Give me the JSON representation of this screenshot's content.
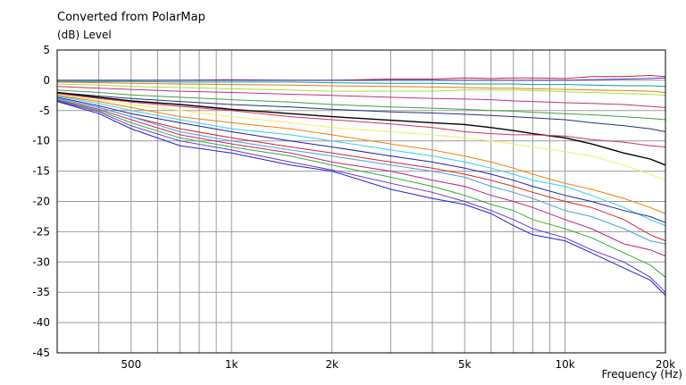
{
  "chart_data": {
    "type": "line",
    "title": "Converted from PolarMap",
    "ylabel": "(dB)  Level",
    "xlabel": "Frequency  (Hz)",
    "x_scale": "log",
    "xlim": [
      300,
      20000
    ],
    "ylim": [
      -45,
      5
    ],
    "grid": true,
    "y_ticks": [
      5,
      0,
      -5,
      -10,
      -15,
      -20,
      -25,
      -30,
      -35,
      -40,
      -45
    ],
    "x_tick_labels": [
      {
        "value": 500,
        "label": "500"
      },
      {
        "value": 1000,
        "label": "1k"
      },
      {
        "value": 2000,
        "label": "2k"
      },
      {
        "value": 5000,
        "label": "5k"
      },
      {
        "value": 10000,
        "label": "10k"
      },
      {
        "value": 20000,
        "label": "20k"
      }
    ],
    "x_gridlines": [
      400,
      500,
      600,
      700,
      800,
      900,
      1000,
      2000,
      3000,
      4000,
      5000,
      6000,
      7000,
      8000,
      9000,
      10000,
      20000
    ],
    "x": [
      300,
      400,
      500,
      700,
      1000,
      1500,
      2000,
      3000,
      4000,
      5000,
      6000,
      7000,
      8000,
      10000,
      12000,
      15000,
      18000,
      20000
    ],
    "series": [
      {
        "color": "#d02020",
        "values": [
          0,
          0,
          0,
          0,
          0.1,
          0,
          0,
          0.2,
          0.2,
          0.4,
          0.3,
          0.4,
          0.4,
          0.3,
          0.6,
          0.6,
          0.8,
          0.6
        ]
      },
      {
        "color": "#3030c0",
        "values": [
          0,
          0,
          0,
          0,
          0,
          0,
          0,
          0,
          0,
          0,
          0,
          0,
          0,
          0,
          0.1,
          0.2,
          0.3,
          0.4
        ]
      },
      {
        "color": "#00a0a0",
        "values": [
          -0.2,
          -0.2,
          -0.2,
          -0.3,
          -0.3,
          -0.3,
          -0.4,
          -0.5,
          -0.5,
          -0.6,
          -0.6,
          -0.6,
          -0.7,
          -0.7,
          -0.8,
          -0.9,
          -0.9,
          -1.0
        ]
      },
      {
        "color": "#e08000",
        "values": [
          -0.3,
          -0.4,
          -0.5,
          -0.6,
          -0.7,
          -0.8,
          -0.9,
          -1.0,
          -1.1,
          -1.2,
          -1.3,
          -1.3,
          -1.4,
          -1.5,
          -1.6,
          -1.7,
          -1.8,
          -2.0
        ]
      },
      {
        "color": "#a0e040",
        "values": [
          -0.6,
          -0.8,
          -1.0,
          -1.2,
          -1.4,
          -1.6,
          -1.8,
          -1.8,
          -1.8,
          -1.6,
          -1.6,
          -1.6,
          -1.7,
          -1.9,
          -2.0,
          -2.2,
          -2.3,
          -2.5
        ]
      },
      {
        "color": "#c03080",
        "values": [
          -1.0,
          -1.3,
          -1.5,
          -1.8,
          -2.0,
          -2.3,
          -2.5,
          -2.8,
          -3.0,
          -3.1,
          -3.2,
          -3.4,
          -3.5,
          -3.7,
          -3.8,
          -4.0,
          -4.3,
          -4.5
        ]
      },
      {
        "color": "#40a040",
        "values": [
          -1.6,
          -2.0,
          -2.4,
          -2.8,
          -3.2,
          -3.6,
          -4.0,
          -4.4,
          -4.6,
          -4.8,
          -5.0,
          -5.1,
          -5.3,
          -5.5,
          -5.7,
          -6.0,
          -6.3,
          -6.5
        ]
      },
      {
        "color": "#203080",
        "values": [
          -2.0,
          -2.6,
          -3.0,
          -3.5,
          -4.0,
          -4.4,
          -4.8,
          -5.2,
          -5.4,
          -5.6,
          -5.8,
          -6.0,
          -6.2,
          -6.5,
          -7.0,
          -7.5,
          -8.0,
          -8.5
        ]
      },
      {
        "color": "#000000",
        "values": [
          -2.0,
          -2.8,
          -3.4,
          -4.0,
          -4.8,
          -5.5,
          -6.0,
          -6.6,
          -7.0,
          -7.3,
          -7.8,
          -8.3,
          -8.8,
          -9.5,
          -10.5,
          -12.0,
          -13.0,
          -14.0
        ]
      },
      {
        "color": "#d03060",
        "values": [
          -2.2,
          -3.0,
          -3.6,
          -4.3,
          -5.0,
          -6.0,
          -6.5,
          -7.2,
          -7.8,
          -8.5,
          -8.8,
          -9.0,
          -9.0,
          -9.2,
          -9.8,
          -10.2,
          -10.8,
          -11.0
        ]
      },
      {
        "color": "#f0f060",
        "values": [
          -2.4,
          -3.3,
          -4.0,
          -5.0,
          -6.0,
          -7.0,
          -7.8,
          -8.5,
          -9.0,
          -9.5,
          -10.0,
          -10.5,
          -11.0,
          -11.8,
          -12.5,
          -14.0,
          -15.5,
          -16.5
        ]
      },
      {
        "color": "#f08000",
        "values": [
          -2.5,
          -3.5,
          -4.5,
          -6.0,
          -7.0,
          -8.0,
          -9.0,
          -10.5,
          -11.5,
          -12.5,
          -13.5,
          -14.5,
          -15.5,
          -17.0,
          -18.0,
          -19.5,
          -21.0,
          -22.0
        ]
      },
      {
        "color": "#30d0f0",
        "values": [
          -2.6,
          -3.8,
          -5.0,
          -6.5,
          -8.0,
          -9.0,
          -10.0,
          -11.5,
          -12.5,
          -13.5,
          -14.5,
          -15.5,
          -16.5,
          -17.5,
          -19.0,
          -21.0,
          -23.0,
          -24.0
        ]
      },
      {
        "color": "#2020a0",
        "values": [
          -2.8,
          -4.2,
          -5.5,
          -7.0,
          -8.5,
          -10.0,
          -11.0,
          -12.5,
          -13.5,
          -14.5,
          -15.5,
          -16.5,
          -17.5,
          -19.0,
          -20.0,
          -21.5,
          -22.5,
          -23.5
        ]
      },
      {
        "color": "#e02020",
        "values": [
          -3.0,
          -4.5,
          -6.0,
          -8.0,
          -9.5,
          -11.0,
          -12.0,
          -13.5,
          -14.5,
          -15.5,
          -16.5,
          -17.5,
          -18.5,
          -20.0,
          -21.0,
          -23.0,
          -25.5,
          -26.5
        ]
      },
      {
        "color": "#40a0e0",
        "values": [
          -3.0,
          -4.5,
          -6.0,
          -8.5,
          -10.0,
          -11.5,
          -12.5,
          -14.0,
          -15.0,
          -16.0,
          -17.5,
          -18.5,
          -19.5,
          -21.5,
          -22.5,
          -24.5,
          -26.5,
          -27.0
        ]
      },
      {
        "color": "#c02080",
        "values": [
          -3.2,
          -4.8,
          -6.5,
          -9.0,
          -10.5,
          -12.0,
          -13.5,
          -15.0,
          -16.5,
          -17.5,
          -19.0,
          -20.0,
          -21.0,
          -23.0,
          -24.5,
          -27.0,
          -28.0,
          -29.0
        ]
      },
      {
        "color": "#30b030",
        "values": [
          -3.3,
          -5.0,
          -7.0,
          -9.5,
          -11.0,
          -12.5,
          -14.0,
          -16.0,
          -17.5,
          -19.0,
          -20.5,
          -21.5,
          -23.0,
          -24.5,
          -26.0,
          -28.5,
          -30.5,
          -32.5
        ]
      },
      {
        "color": "#7030c0",
        "values": [
          -3.4,
          -5.2,
          -7.5,
          -10.0,
          -11.5,
          -13.5,
          -14.8,
          -17.0,
          -18.5,
          -20.0,
          -21.5,
          -23.0,
          -24.5,
          -26.0,
          -28.0,
          -30.0,
          -32.5,
          -35.0
        ]
      },
      {
        "color": "#2020d0",
        "values": [
          -3.5,
          -5.5,
          -8.0,
          -10.8,
          -12.0,
          -14.0,
          -15.0,
          -18.0,
          -19.5,
          -20.5,
          -22.0,
          -24.0,
          -25.5,
          -26.5,
          -28.5,
          -31.0,
          -33.0,
          -35.5
        ]
      }
    ]
  }
}
